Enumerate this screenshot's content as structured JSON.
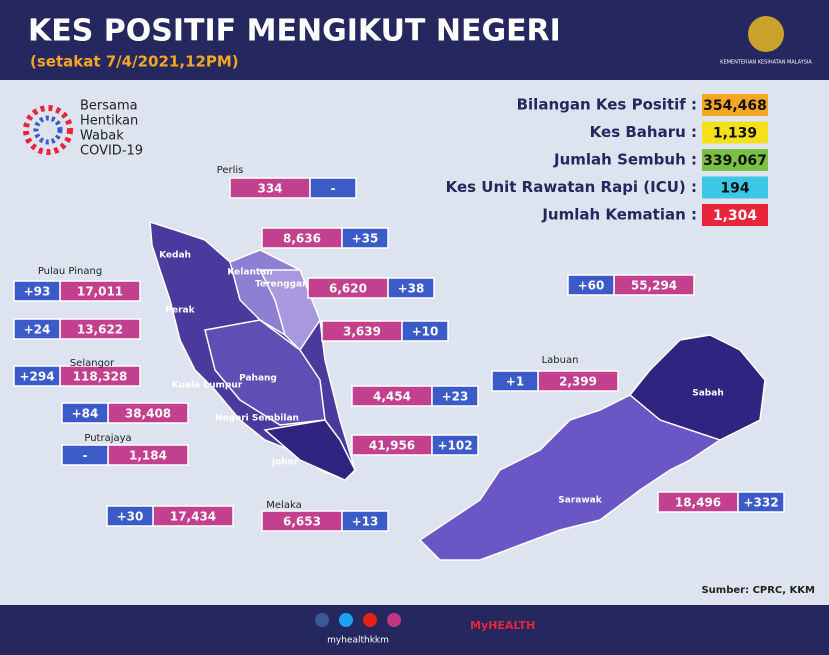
{
  "header": {
    "title": "KES POSITIF MENGIKUT NEGERI",
    "subtitle": "(setakat 7/4/2021,12PM)"
  },
  "campaign": [
    "Bersama",
    "Hentikan",
    "Wabak",
    "COVID-19"
  ],
  "ministry": "KEMENTERIAN KESIHATAN MALAYSIA",
  "summary": [
    {
      "label": "Bilangan Kes Positif :",
      "value": "354,468"
    },
    {
      "label": "Kes Baharu :",
      "value": "1,139"
    },
    {
      "label": "Jumlah Sembuh :",
      "value": "339,067"
    },
    {
      "label": "Kes Unit Rawatan Rapi (ICU) :",
      "value": "194"
    },
    {
      "label": "Jumlah Kematian :",
      "value": "1,304"
    }
  ],
  "states": [
    {
      "name": "Perlis",
      "total": "334",
      "new": "-"
    },
    {
      "name": "Kedah",
      "total": "8,636",
      "new": "+35"
    },
    {
      "name": "Pulau Pinang",
      "total": "17,011",
      "new": "+93"
    },
    {
      "name": "Perak",
      "total": "13,622",
      "new": "+24"
    },
    {
      "name": "Selangor",
      "total": "118,328",
      "new": "+294"
    },
    {
      "name": "Kuala Lumpur",
      "total": "38,408",
      "new": "+84"
    },
    {
      "name": "Putrajaya",
      "total": "1,184",
      "new": "-"
    },
    {
      "name": "Negeri Sembilan",
      "total": "17,434",
      "new": "+30"
    },
    {
      "name": "Melaka",
      "total": "6,653",
      "new": "+13"
    },
    {
      "name": "Johor",
      "total": "41,956",
      "new": "+102"
    },
    {
      "name": "Pahang",
      "total": "4,454",
      "new": "+23"
    },
    {
      "name": "Terengganu",
      "total": "3,639",
      "new": "+10"
    },
    {
      "name": "Kelantan",
      "total": "6,620",
      "new": "+38"
    },
    {
      "name": "Sabah",
      "total": "55,294",
      "new": "+60"
    },
    {
      "name": "Labuan",
      "total": "2,399",
      "new": "+1"
    },
    {
      "name": "Sarawak",
      "total": "18,496",
      "new": "+332"
    }
  ],
  "source": "Sumber: CPRC, KKM",
  "footer": {
    "handle": "myhealthkkm",
    "brand": "MyHEALTH"
  }
}
